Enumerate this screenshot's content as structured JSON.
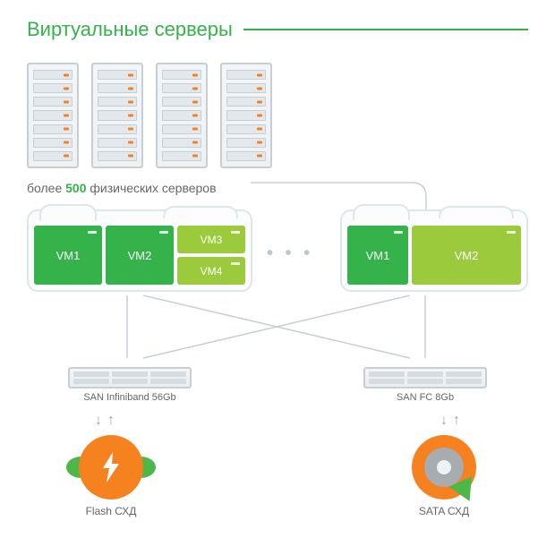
{
  "title": {
    "text": "Виртуальные серверы",
    "color": "#35b34a"
  },
  "colors": {
    "accent_green": "#35b34a",
    "vm_dark": "#35b34a",
    "vm_light": "#9bcb3c",
    "orange": "#f5821f",
    "leaf_green": "#4db748",
    "grey_stroke": "#c7cfd4",
    "arrow_grey": "#9aa7ad",
    "slot_led": "#f5821f",
    "disc_mid": "#a6acb0"
  },
  "server_racks": {
    "count": 4,
    "slots_per_rack": 7
  },
  "subtitle": {
    "prefix": "более ",
    "count": "500",
    "suffix": " физических серверов"
  },
  "dots": "• • •",
  "clouds": {
    "left": {
      "vms": [
        {
          "label": "VM1",
          "color_key": "vm_dark"
        },
        {
          "label": "VM2",
          "color_key": "vm_dark"
        }
      ],
      "split": [
        {
          "label": "VM3",
          "color_key": "vm_light"
        },
        {
          "label": "VM4",
          "color_key": "vm_light"
        }
      ]
    },
    "right": {
      "vms": [
        {
          "label": "VM1",
          "color_key": "vm_dark",
          "flex": 1
        },
        {
          "label": "VM2",
          "color_key": "vm_light",
          "flex": 1.8
        }
      ]
    }
  },
  "switches": {
    "left": {
      "label": "SAN Infiniband 56Gb"
    },
    "right": {
      "label": "SAN FC 8Gb"
    }
  },
  "storage": {
    "left": {
      "label": "Flash СХД",
      "type": "flash"
    },
    "right": {
      "label": "SATA СХД",
      "type": "disc"
    }
  }
}
